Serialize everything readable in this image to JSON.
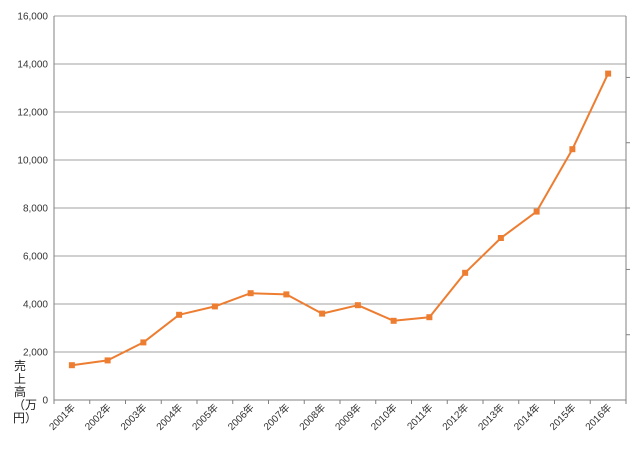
{
  "chart_data": {
    "type": "line",
    "title": "",
    "xlabel": "",
    "ylabel": "売上高（万円）",
    "categories": [
      "2001年",
      "2002年",
      "2003年",
      "2004年",
      "2005年",
      "2006年",
      "2007年",
      "2008年",
      "2009年",
      "2010年",
      "2011年",
      "2012年",
      "2013年",
      "2014年",
      "2015年",
      "2016年"
    ],
    "series": [
      {
        "values": [
          1450,
          1650,
          2400,
          3550,
          3900,
          4450,
          4400,
          3600,
          3950,
          3300,
          3450,
          5300,
          6750,
          7850,
          10450,
          13600
        ]
      }
    ],
    "ylim": [
      0,
      16000
    ],
    "yticks": [
      "0",
      "2,000",
      "4,000",
      "6,000",
      "8,000",
      "10,000",
      "12,000",
      "14,000",
      "16,000"
    ],
    "grid": true,
    "legend": "none",
    "colors": {
      "line": "#ED7D31",
      "grid": "#808080",
      "axis": "#808080"
    }
  }
}
